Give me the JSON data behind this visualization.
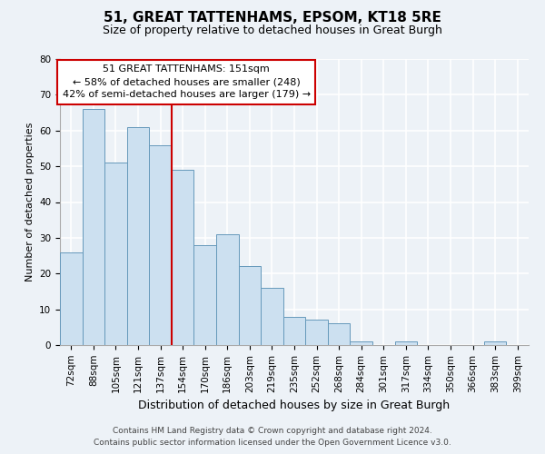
{
  "title": "51, GREAT TATTENHAMS, EPSOM, KT18 5RE",
  "subtitle": "Size of property relative to detached houses in Great Burgh",
  "xlabel": "Distribution of detached houses by size in Great Burgh",
  "ylabel": "Number of detached properties",
  "bar_labels": [
    "72sqm",
    "88sqm",
    "105sqm",
    "121sqm",
    "137sqm",
    "154sqm",
    "170sqm",
    "186sqm",
    "203sqm",
    "219sqm",
    "235sqm",
    "252sqm",
    "268sqm",
    "284sqm",
    "301sqm",
    "317sqm",
    "334sqm",
    "350sqm",
    "366sqm",
    "383sqm",
    "399sqm"
  ],
  "bar_heights": [
    26,
    66,
    51,
    61,
    56,
    49,
    28,
    31,
    22,
    16,
    8,
    7,
    6,
    1,
    0,
    1,
    0,
    0,
    0,
    1,
    0
  ],
  "bar_color": "#cce0f0",
  "bar_edge_color": "#6699bb",
  "vline_color": "#cc0000",
  "annotation_title": "51 GREAT TATTENHAMS: 151sqm",
  "annotation_line1": "← 58% of detached houses are smaller (248)",
  "annotation_line2": "42% of semi-detached houses are larger (179) →",
  "annotation_box_facecolor": "#ffffff",
  "annotation_box_edgecolor": "#cc0000",
  "ylim": [
    0,
    80
  ],
  "yticks": [
    0,
    10,
    20,
    30,
    40,
    50,
    60,
    70,
    80
  ],
  "footer_line1": "Contains HM Land Registry data © Crown copyright and database right 2024.",
  "footer_line2": "Contains public sector information licensed under the Open Government Licence v3.0.",
  "bg_color": "#edf2f7",
  "grid_color": "#ffffff",
  "title_fontsize": 11,
  "subtitle_fontsize": 9,
  "xlabel_fontsize": 9,
  "ylabel_fontsize": 8,
  "tick_fontsize": 7.5,
  "annotation_fontsize": 8,
  "footer_fontsize": 6.5
}
